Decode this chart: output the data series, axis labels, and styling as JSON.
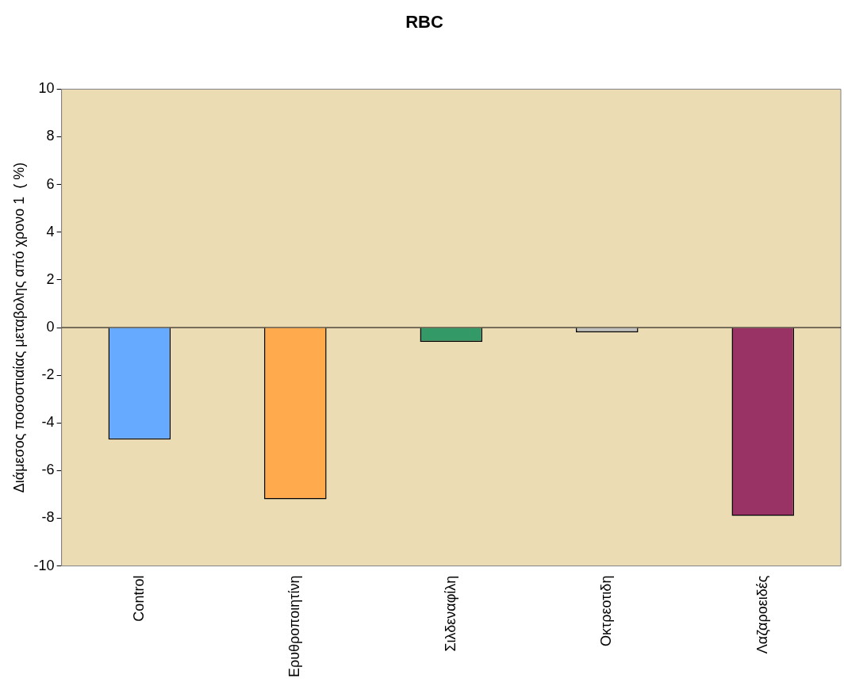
{
  "chart_data": {
    "type": "bar",
    "title": "RBC",
    "ylabel": "Διάμεσος ποσοστιαίας μεταβολης από χρονο 1  ( %)",
    "categories": [
      "Control",
      "Ερυθροποιητίνη",
      "Σιλδεναφίλη",
      "Οκτρεοτιδη",
      "Λαζαροειδές"
    ],
    "values": [
      -4.7,
      -7.2,
      -0.6,
      -0.2,
      -7.9
    ],
    "colors": [
      "#66aaff",
      "#ffaa4d",
      "#339966",
      "#c0c0c0",
      "#993366"
    ],
    "ylim": [
      -10,
      10
    ],
    "yticks": [
      -10,
      -8,
      -6,
      -4,
      -2,
      0,
      2,
      4,
      6,
      8,
      10
    ],
    "grid": false,
    "legend": false,
    "ref_lines": [
      {
        "axis": "y",
        "value": 0,
        "color": "#000000"
      }
    ]
  }
}
